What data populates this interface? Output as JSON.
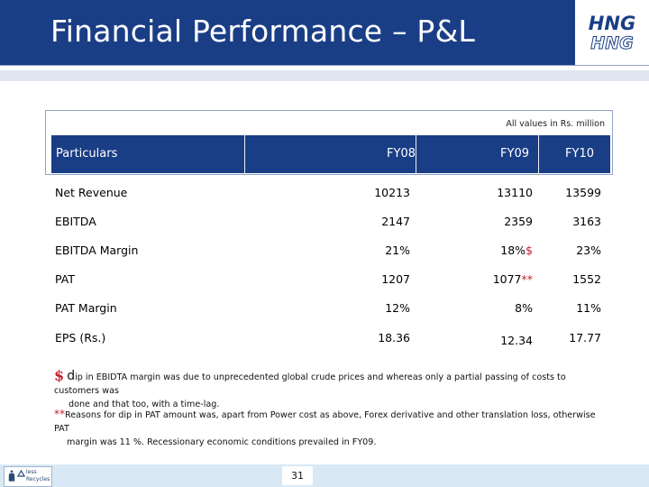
{
  "title": "Financial Performance – P&L",
  "logo_text": [
    "HNG",
    "HNG"
  ],
  "units_note": "All values in Rs. million",
  "table": {
    "headers": [
      "Particulars",
      "FY08",
      "FY09",
      "FY10"
    ],
    "rows": [
      {
        "name": "Net Revenue",
        "fy08": "10213",
        "fy09": "13110",
        "fy09_mark": "",
        "fy10": "13599"
      },
      {
        "name": "EBITDA",
        "fy08": "2147",
        "fy09": "2359",
        "fy09_mark": "",
        "fy10": "3163"
      },
      {
        "name": "EBITDA Margin",
        "fy08": "21%",
        "fy09": "18%",
        "fy09_mark": "$",
        "fy10": "23%"
      },
      {
        "name": "PAT",
        "fy08": "1207",
        "fy09": "1077",
        "fy09_mark": "**",
        "fy10": "1552"
      },
      {
        "name": "PAT Margin",
        "fy08": "12%",
        "fy09": "8%",
        "fy09_mark": "",
        "fy10": "11%"
      },
      {
        "name": "EPS (Rs.)",
        "fy08": "18.36",
        "fy09": "12.34",
        "fy09_mark": "",
        "fy10": "17.77"
      }
    ]
  },
  "notes": {
    "dollar_symbol": "$",
    "note1_first": "d",
    "note1_line1": "ip in EBIDTA margin was due to unprecedented global crude prices and whereas only a partial passing of costs to customers was",
    "note1_line2": "done and that too, with a time-lag.",
    "stars_symbol": "**",
    "note2_line1": "Reasons for dip in PAT amount was, apart from Power cost as above, Forex derivative and other translation loss, otherwise PAT",
    "note2_line2": "margin was 11 %. Recessionary economic conditions prevailed in FY09."
  },
  "footer": {
    "logo_text_line1": "less",
    "logo_text_line2": "Recycles",
    "page_number": "31"
  },
  "colors": {
    "brand_blue": "#1a3e86",
    "accent_red": "#c2202e",
    "footer_bg": "#d8e9f5"
  }
}
